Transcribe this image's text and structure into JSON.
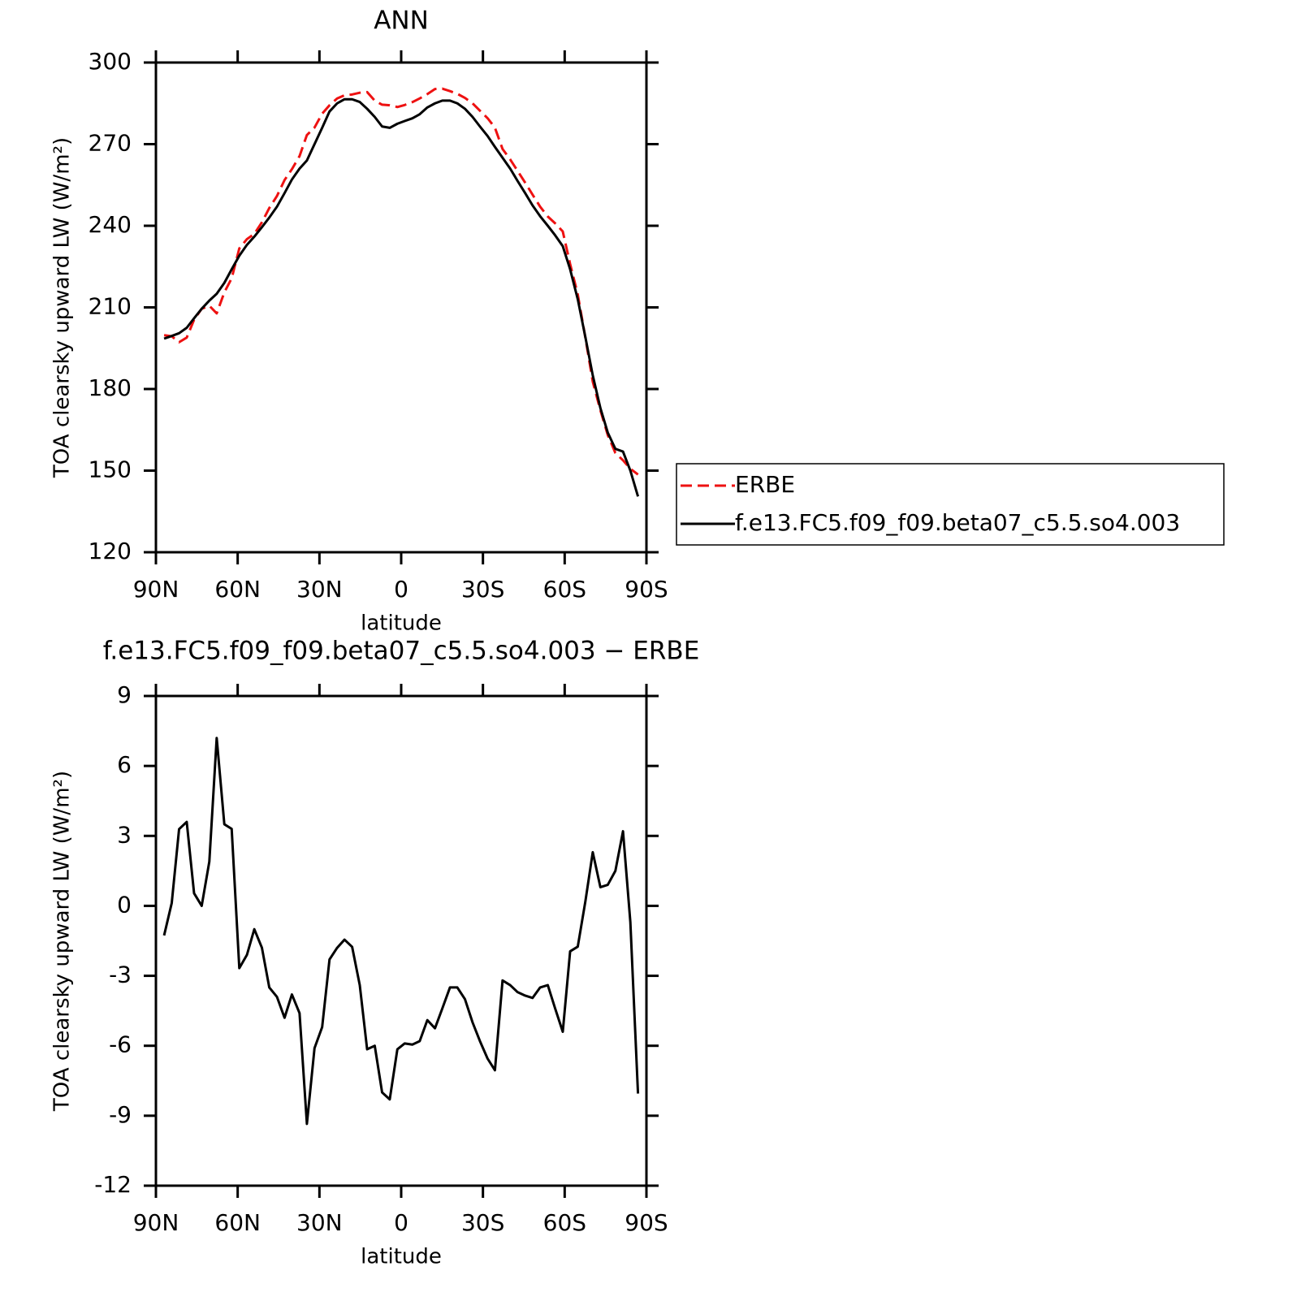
{
  "chart_data": [
    {
      "type": "line",
      "title": "ANN",
      "xlabel": "latitude",
      "ylabel": "TOA clearsky upward LW (W/m²)",
      "x": [
        87.0,
        84.2,
        81.5,
        78.7,
        76.0,
        73.2,
        70.4,
        67.7,
        64.9,
        62.2,
        59.4,
        56.6,
        53.9,
        51.1,
        48.4,
        45.6,
        42.8,
        40.1,
        37.3,
        34.6,
        31.8,
        29.0,
        26.3,
        23.5,
        20.8,
        18.0,
        15.2,
        12.5,
        9.7,
        7.0,
        4.2,
        1.4,
        -1.3,
        -4.1,
        -6.8,
        -9.6,
        -12.4,
        -15.1,
        -17.9,
        -20.6,
        -23.4,
        -26.2,
        -28.9,
        -31.7,
        -34.4,
        -37.2,
        -40.0,
        -42.7,
        -45.5,
        -48.2,
        -51.0,
        -53.8,
        -56.5,
        -59.3,
        -62.0,
        -64.8,
        -67.6,
        -70.3,
        -73.1,
        -75.8,
        -78.6,
        -81.4,
        -84.1,
        -86.9
      ],
      "series": [
        {
          "name": "ERBE",
          "color": "#ee1111",
          "style": "dashed",
          "values": [
            199.77,
            199.38,
            197.21,
            198.9,
            205.46,
            209.5,
            210.6,
            207.8,
            215.5,
            220.7,
            231.67,
            235.1,
            237,
            241.3,
            246.5,
            250.9,
            256.8,
            260.8,
            265.6,
            273.35,
            276.1,
            281.2,
            284.3,
            286.8,
            287.95,
            288.26,
            288.9,
            289.15,
            286,
            284.5,
            284.3,
            283.65,
            284.4,
            285.45,
            286.8,
            288.4,
            290.25,
            290.4,
            289.5,
            288.5,
            287,
            285,
            282.3,
            279.55,
            276.05,
            268.2,
            264.4,
            260.2,
            255.85,
            251.45,
            247,
            243.4,
            240.9,
            237.9,
            225.95,
            214.75,
            198.8,
            182.7,
            172.2,
            163.1,
            156.5,
            153.8,
            150.7,
            148.55
          ]
        },
        {
          "name": "f.e13.FC5.f09_f09.beta07_c5.5.so4.003",
          "color": "#000000",
          "style": "solid",
          "values": [
            198.5,
            199.5,
            200.5,
            202.5,
            206,
            209.5,
            212.5,
            215,
            219,
            224,
            229,
            233,
            236,
            239.5,
            243,
            247,
            252,
            257,
            261,
            264,
            270,
            276,
            282,
            285,
            286.5,
            286.5,
            285.5,
            283,
            280,
            276.5,
            276,
            277.5,
            278.5,
            279.5,
            281,
            283.5,
            285,
            286,
            286,
            285,
            283,
            280,
            276.5,
            273,
            269,
            265,
            261,
            256.5,
            252,
            247.5,
            243.5,
            240,
            236.5,
            232.5,
            224,
            213,
            199,
            185,
            173,
            164,
            158,
            157,
            150,
            140.5
          ]
        }
      ],
      "xlim": [
        90,
        -90
      ],
      "xticks": [
        {
          "value": 90,
          "label": "90N"
        },
        {
          "value": 60,
          "label": "60N"
        },
        {
          "value": 30,
          "label": "30N"
        },
        0,
        {
          "value": -30,
          "label": "30S"
        },
        {
          "value": -60,
          "label": "60S"
        },
        {
          "value": -90,
          "label": "90S"
        }
      ],
      "ylim": [
        120,
        300
      ],
      "yticks": [
        120,
        150,
        180,
        210,
        240,
        270,
        300
      ],
      "legend": "right"
    },
    {
      "type": "line",
      "title": "f.e13.FC5.f09_f09.beta07_c5.5.so4.003 − ERBE",
      "xlabel": "latitude",
      "ylabel": "TOA clearsky upward LW (W/m²)",
      "x": [
        87.0,
        84.2,
        81.5,
        78.7,
        76.0,
        73.2,
        70.4,
        67.7,
        64.9,
        62.2,
        59.4,
        56.6,
        53.9,
        51.1,
        48.4,
        45.6,
        42.8,
        40.1,
        37.3,
        34.6,
        31.8,
        29.0,
        26.3,
        23.5,
        20.8,
        18.0,
        15.2,
        12.5,
        9.7,
        7.0,
        4.2,
        1.4,
        -1.3,
        -4.1,
        -6.8,
        -9.6,
        -12.4,
        -15.1,
        -17.9,
        -20.6,
        -23.4,
        -26.2,
        -28.9,
        -31.7,
        -34.4,
        -37.2,
        -40.0,
        -42.7,
        -45.5,
        -48.2,
        -51.0,
        -53.8,
        -56.5,
        -59.3,
        -62.0,
        -64.8,
        -67.6,
        -70.3,
        -73.1,
        -75.8,
        -78.6,
        -81.4,
        -84.1,
        -86.9
      ],
      "series": [
        {
          "color": "#000000",
          "style": "solid",
          "values": [
            -1.27,
            0.12,
            3.29,
            3.6,
            0.54,
            0,
            1.9,
            7.2,
            3.5,
            3.3,
            -2.67,
            -2.1,
            -1.0,
            -1.8,
            -3.5,
            -3.9,
            -4.8,
            -3.8,
            -4.6,
            -9.35,
            -6.1,
            -5.2,
            -2.3,
            -1.8,
            -1.45,
            -1.76,
            -3.4,
            -6.15,
            -6.0,
            -8.0,
            -8.3,
            -6.15,
            -5.9,
            -5.95,
            -5.8,
            -4.9,
            -5.25,
            -4.4,
            -3.5,
            -3.5,
            -4.0,
            -5.0,
            -5.8,
            -6.55,
            -7.05,
            -3.2,
            -3.4,
            -3.7,
            -3.85,
            -3.95,
            -3.5,
            -3.4,
            -4.4,
            -5.4,
            -1.95,
            -1.75,
            0.2,
            2.3,
            0.8,
            0.9,
            1.5,
            3.2,
            -0.7,
            -8.05
          ]
        }
      ],
      "xlim": [
        90,
        -90
      ],
      "xticks": [
        {
          "value": 90,
          "label": "90N"
        },
        {
          "value": 60,
          "label": "60N"
        },
        {
          "value": 30,
          "label": "30N"
        },
        0,
        {
          "value": -30,
          "label": "30S"
        },
        {
          "value": -60,
          "label": "60S"
        },
        {
          "value": -90,
          "label": "90S"
        }
      ],
      "ylim": [
        -12,
        9
      ],
      "yticks": [
        -12,
        -9,
        -6,
        -3,
        0,
        3,
        6,
        9
      ]
    }
  ]
}
